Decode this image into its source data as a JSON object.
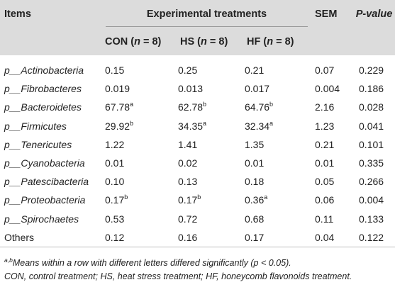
{
  "header": {
    "items": "Items",
    "group": "Experimental treatments",
    "sem": "SEM",
    "pvalue": "P-value",
    "con": "CON",
    "hs": "HS",
    "hf": "HF",
    "n_label": "n",
    "n_eq": " = 8)",
    "open": " ("
  },
  "rows": [
    {
      "name": "p__Actinobacteria",
      "con": "0.15",
      "con_sup": "",
      "hs": "0.25",
      "hs_sup": "",
      "hf": "0.21",
      "hf_sup": "",
      "sem": "0.07",
      "p": "0.229"
    },
    {
      "name": "p__Fibrobacteres",
      "con": "0.019",
      "con_sup": "",
      "hs": "0.013",
      "hs_sup": "",
      "hf": "0.017",
      "hf_sup": "",
      "sem": "0.004",
      "p": "0.186"
    },
    {
      "name": "p__Bacteroidetes",
      "con": "67.78",
      "con_sup": "a",
      "hs": "62.78",
      "hs_sup": "b",
      "hf": "64.76",
      "hf_sup": "b",
      "sem": "2.16",
      "p": "0.028"
    },
    {
      "name": "p__Firmicutes",
      "con": "29.92",
      "con_sup": "b",
      "hs": "34.35",
      "hs_sup": "a",
      "hf": "32.34",
      "hf_sup": "a",
      "sem": "1.23",
      "p": "0.041"
    },
    {
      "name": "p__Tenericutes",
      "con": "1.22",
      "con_sup": "",
      "hs": "1.41",
      "hs_sup": "",
      "hf": "1.35",
      "hf_sup": "",
      "sem": "0.21",
      "p": "0.101"
    },
    {
      "name": "p__Cyanobacteria",
      "con": "0.01",
      "con_sup": "",
      "hs": "0.02",
      "hs_sup": "",
      "hf": "0.01",
      "hf_sup": "",
      "sem": "0.01",
      "p": "0.335"
    },
    {
      "name": "p__Patescibacteria",
      "con": "0.10",
      "con_sup": "",
      "hs": "0.13",
      "hs_sup": "",
      "hf": "0.18",
      "hf_sup": "",
      "sem": "0.05",
      "p": "0.266"
    },
    {
      "name": "p__Proteobacteria",
      "con": "0.17",
      "con_sup": "b",
      "hs": "0.17",
      "hs_sup": "b",
      "hf": "0.36",
      "hf_sup": "a",
      "sem": "0.06",
      "p": "0.004"
    },
    {
      "name": "p__Spirochaetes",
      "con": "0.53",
      "con_sup": "",
      "hs": "0.72",
      "hs_sup": "",
      "hf": "0.68",
      "hf_sup": "",
      "sem": "0.11",
      "p": "0.133"
    },
    {
      "name": "Others",
      "con": "0.12",
      "con_sup": "",
      "hs": "0.16",
      "hs_sup": "",
      "hf": "0.17",
      "hf_sup": "",
      "sem": "0.04",
      "p": "0.122"
    }
  ],
  "footnotes": {
    "sig_sup": "a,b",
    "sig_text": "Means within a row with different letters differed significantly (p < 0.05).",
    "abbrev": "CON, control treatment; HS, heat stress treatment; HF, honeycomb flavonoids treatment."
  }
}
